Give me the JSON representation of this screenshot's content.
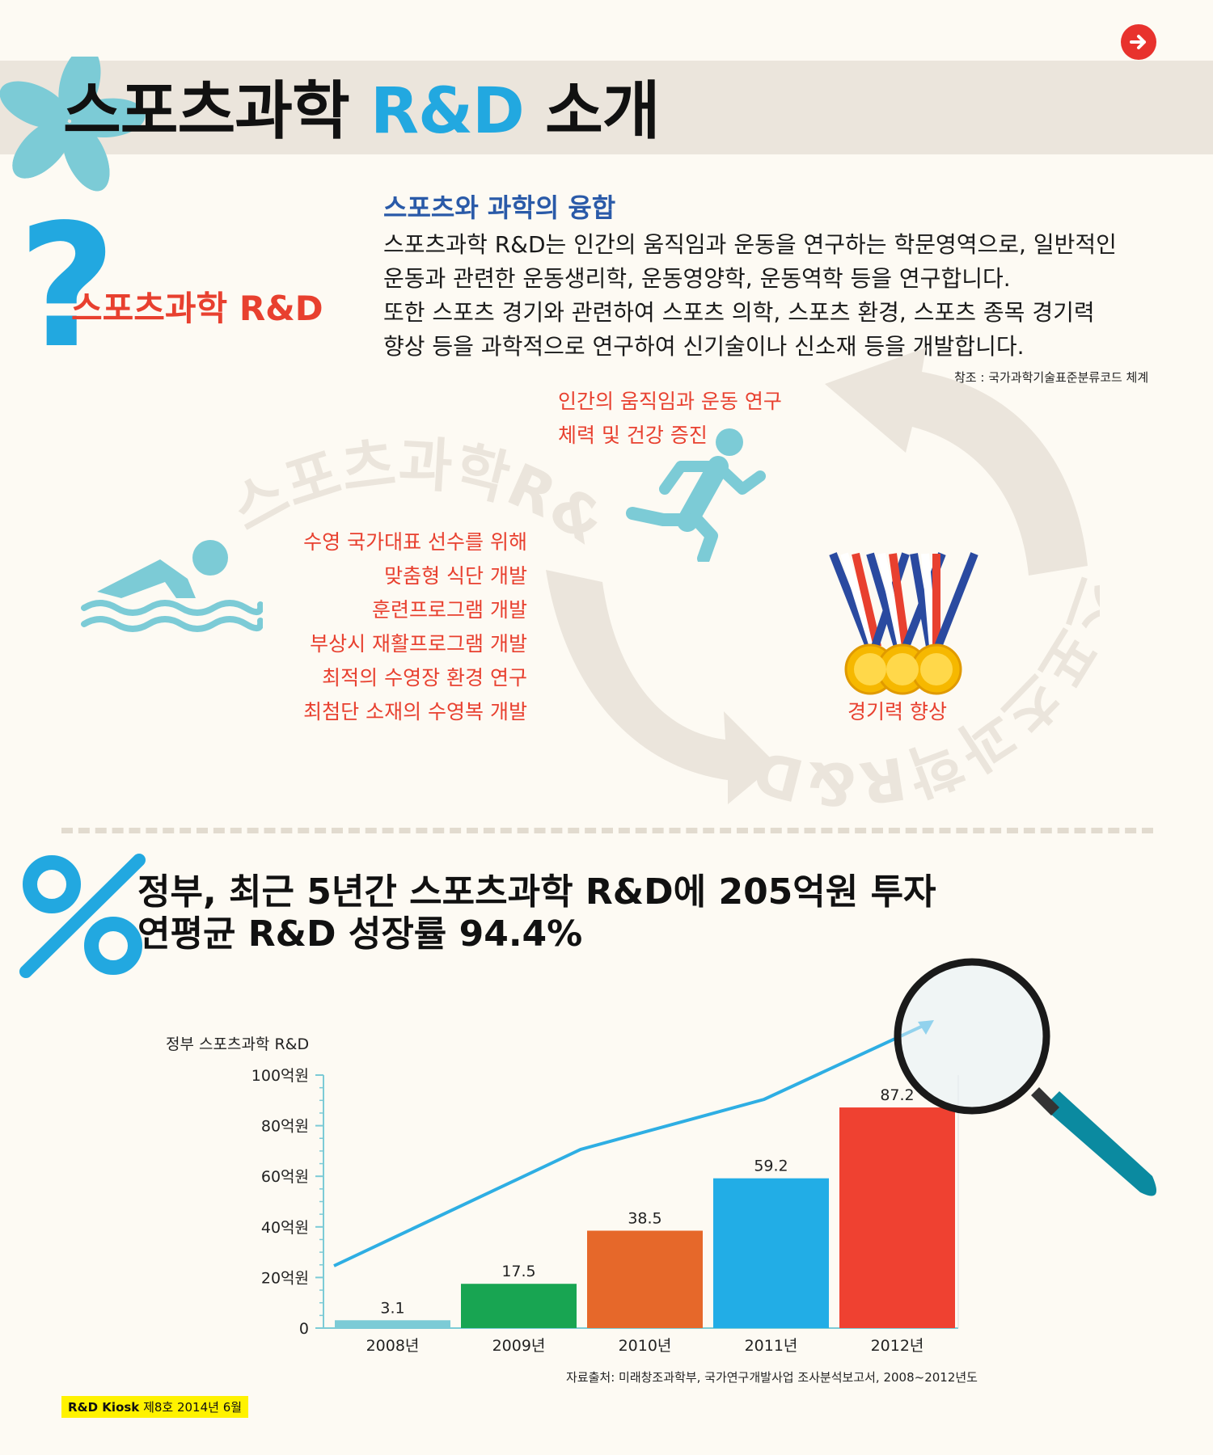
{
  "header": {
    "title_main": "스포츠과학",
    "title_accent": "R&D",
    "title_tail": "소개",
    "next_button_icon": "arrow-right-icon"
  },
  "intro": {
    "question_mark": "?",
    "label": "스포츠과학 R&D",
    "sub_heading": "스포츠와 과학의 융합",
    "paragraph_lines": [
      "스포츠과학 R&D는 인간의 움직임과 운동을 연구하는 학문영역으로, 일반적인",
      "운동과 관련한 운동생리학, 운동영양학, 운동역학 등을 연구합니다.",
      "또한 스포츠 경기와 관련하여 스포츠 의학, 스포츠 환경, 스포츠 종목 경기력",
      "향상 등을 과학적으로 연구하여 신기술이나 신소재 등을 개발합니다."
    ],
    "reference": "참조 : 국가과학기술표준분류코드 체계"
  },
  "cycle": {
    "watermark_text": "스포츠과학R&D",
    "running": [
      "인간의 움직임과 운동 연구",
      "체력 및 건강 증진"
    ],
    "swimming": [
      "수영 국가대표 선수를 위해",
      "맞춤형 식단 개발",
      "훈련프로그램 개발",
      "부상시 재활프로그램 개발",
      "최적의 수영장 환경 연구",
      "최첨단 소재의 수영복 개발"
    ],
    "medal": "경기력 향상",
    "icons": [
      "runner-icon",
      "swimmer-icon",
      "medals-icon",
      "cycle-arrows-icon"
    ]
  },
  "stats": {
    "percent_symbol": "%",
    "headline_lines": [
      "정부, 최근 5년간 스포츠과학 R&D에 205억원 투자",
      "연평균 R&D 성장률 94.4%"
    ]
  },
  "chart_data": {
    "type": "bar",
    "title": "정부 스포츠과학 R&D",
    "categories": [
      "2008년",
      "2009년",
      "2010년",
      "2011년",
      "2012년"
    ],
    "values": [
      3.1,
      17.5,
      38.5,
      59.2,
      87.2
    ],
    "value_labels": [
      "3.1",
      "17.5",
      "38.5",
      "59.2",
      "87.2"
    ],
    "bar_colors": [
      "#7ccbd6",
      "#18a552",
      "#e6682a",
      "#22ade6",
      "#ef4131"
    ],
    "ylim": [
      0,
      100
    ],
    "yticks": [
      0,
      20,
      40,
      60,
      80,
      100
    ],
    "ytick_labels": [
      "0",
      "20억원",
      "40억원",
      "60억원",
      "80억원",
      "100억원"
    ],
    "trend_color": "#2eaee3",
    "source": "자료출처: 미래창조과학부, 국가연구개발사업 조사분석보고서, 2008~2012년도"
  },
  "footer": {
    "brand": "R&D Kiosk",
    "issue": "제8호 2014년 6월"
  }
}
